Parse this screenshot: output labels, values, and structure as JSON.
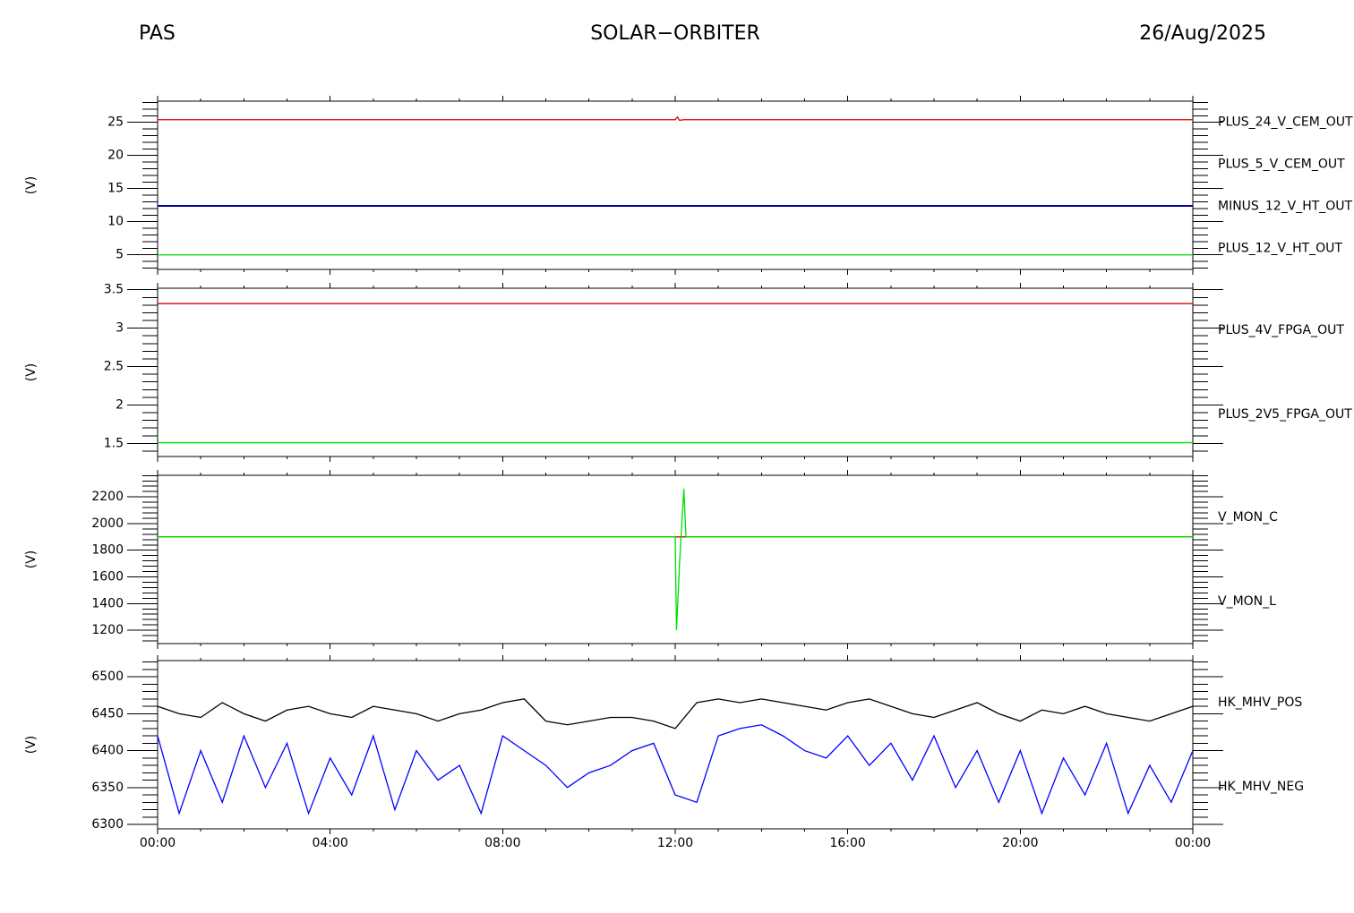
{
  "header": {
    "instrument": "PAS",
    "mission": "SOLAR−ORBITER",
    "date": "26/Aug/2025"
  },
  "chart_data": [
    {
      "type": "line",
      "ylabel": "(V)",
      "x": [
        0,
        12.0,
        12.05,
        12.1,
        12.2,
        24
      ],
      "xlim": [
        0,
        24
      ],
      "xticks": [
        {
          "value": 0,
          "label": "00:00"
        },
        {
          "value": 4,
          "label": "04:00"
        },
        {
          "value": 8,
          "label": "08:00"
        },
        {
          "value": 12,
          "label": "12:00"
        },
        {
          "value": 16,
          "label": "16:00"
        },
        {
          "value": 20,
          "label": "20:00"
        },
        {
          "value": 24,
          "label": "00:00"
        }
      ],
      "ylim": [
        2.8,
        28.2
      ],
      "yticks": [
        5,
        10,
        15,
        20,
        25
      ],
      "series": [
        {
          "name": "PLUS_24_V_CEM_OUT",
          "color": "#e00000",
          "values": [
            25.4,
            25.4,
            25.8,
            25.3,
            25.4,
            25.4
          ]
        },
        {
          "name": "PLUS_5_V_CEM_OUT",
          "color": "#00dd00",
          "values": [
            5.0,
            5.0,
            5.0,
            5.0,
            5.0,
            5.0
          ]
        },
        {
          "name": "MINUS_12_V_HT_OUT",
          "color": "#000000",
          "values": [
            12.4,
            12.4,
            12.4,
            12.4,
            12.4,
            12.4
          ]
        },
        {
          "name": "PLUS_12_V_HT_OUT",
          "color": "#00008b",
          "values": [
            12.4,
            12.4,
            12.4,
            12.4,
            12.4,
            12.4
          ]
        }
      ]
    },
    {
      "type": "line",
      "ylabel": "(V)",
      "x": [
        0,
        24
      ],
      "xlim": [
        0,
        24
      ],
      "xticks": [
        {
          "value": 0,
          "label": "00:00"
        },
        {
          "value": 4,
          "label": "04:00"
        },
        {
          "value": 8,
          "label": "08:00"
        },
        {
          "value": 12,
          "label": "12:00"
        },
        {
          "value": 16,
          "label": "16:00"
        },
        {
          "value": 20,
          "label": "20:00"
        },
        {
          "value": 24,
          "label": "00:00"
        }
      ],
      "ylim": [
        1.33,
        3.52
      ],
      "yticks": [
        1.5,
        2.0,
        2.5,
        3.0,
        3.5
      ],
      "series": [
        {
          "name": "PLUS_4V_FPGA_OUT",
          "color": "#e00000",
          "values": [
            3.32,
            3.32
          ]
        },
        {
          "name": "PLUS_2V5_FPGA_OUT",
          "color": "#00dd00",
          "values": [
            1.51,
            1.51
          ]
        }
      ]
    },
    {
      "type": "line",
      "ylabel": "(V)",
      "x": [
        0,
        12.0,
        12.03,
        12.1,
        12.2,
        12.25,
        24
      ],
      "xlim": [
        0,
        24
      ],
      "xticks": [
        {
          "value": 0,
          "label": "00:00"
        },
        {
          "value": 4,
          "label": "04:00"
        },
        {
          "value": 8,
          "label": "08:00"
        },
        {
          "value": 12,
          "label": "12:00"
        },
        {
          "value": 16,
          "label": "16:00"
        },
        {
          "value": 20,
          "label": "20:00"
        },
        {
          "value": 24,
          "label": "00:00"
        }
      ],
      "ylim": [
        1100,
        2362
      ],
      "yticks": [
        1200,
        1400,
        1600,
        1800,
        2000,
        2200
      ],
      "series": [
        {
          "name": "V_MON_C",
          "color": "#e00000",
          "values": [
            1900,
            1900,
            1900,
            1900,
            1900,
            1900,
            1900
          ]
        },
        {
          "name": "V_MON_L",
          "color": "#00dd00",
          "values": [
            1900,
            1900,
            1200,
            1700,
            2260,
            1900,
            1900
          ]
        }
      ]
    },
    {
      "type": "line",
      "ylabel": "(V)",
      "x": [
        0,
        0.5,
        1,
        1.5,
        2,
        2.5,
        3,
        3.5,
        4,
        4.5,
        5,
        5.5,
        6,
        6.5,
        7,
        7.5,
        8,
        8.5,
        9,
        9.5,
        10,
        10.5,
        11,
        11.5,
        12,
        12.5,
        13,
        13.5,
        14,
        14.5,
        15,
        15.5,
        16,
        16.5,
        17,
        17.5,
        18,
        18.5,
        19,
        19.5,
        20,
        20.5,
        21,
        21.5,
        22,
        22.5,
        23,
        23.5,
        24
      ],
      "xlim": [
        0,
        24
      ],
      "xticks": [
        {
          "value": 0,
          "label": "00:00"
        },
        {
          "value": 4,
          "label": "04:00"
        },
        {
          "value": 8,
          "label": "08:00"
        },
        {
          "value": 12,
          "label": "12:00"
        },
        {
          "value": 16,
          "label": "16:00"
        },
        {
          "value": 20,
          "label": "20:00"
        },
        {
          "value": 24,
          "label": "00:00"
        }
      ],
      "ylim": [
        6294,
        6522
      ],
      "yticks": [
        6300,
        6350,
        6400,
        6450,
        6500
      ],
      "series": [
        {
          "name": "HK_MHV_POS",
          "color": "#000000",
          "values": [
            6460,
            6450,
            6445,
            6465,
            6450,
            6440,
            6455,
            6460,
            6450,
            6445,
            6460,
            6455,
            6450,
            6440,
            6450,
            6455,
            6465,
            6470,
            6440,
            6435,
            6440,
            6445,
            6445,
            6440,
            6430,
            6465,
            6470,
            6465,
            6470,
            6465,
            6460,
            6455,
            6465,
            6470,
            6460,
            6450,
            6445,
            6455,
            6465,
            6450,
            6440,
            6455,
            6450,
            6460,
            6450,
            6445,
            6440,
            6450,
            6460
          ]
        },
        {
          "name": "HK_MHV_NEG",
          "color": "#0000ff",
          "values": [
            6420,
            6315,
            6400,
            6330,
            6420,
            6350,
            6410,
            6315,
            6390,
            6340,
            6420,
            6320,
            6400,
            6360,
            6380,
            6315,
            6420,
            6400,
            6380,
            6350,
            6370,
            6380,
            6400,
            6410,
            6340,
            6330,
            6420,
            6430,
            6435,
            6420,
            6400,
            6390,
            6420,
            6380,
            6410,
            6360,
            6420,
            6350,
            6400,
            6330,
            6400,
            6315,
            6390,
            6340,
            6410,
            6315,
            6380,
            6330,
            6400
          ]
        }
      ]
    }
  ]
}
